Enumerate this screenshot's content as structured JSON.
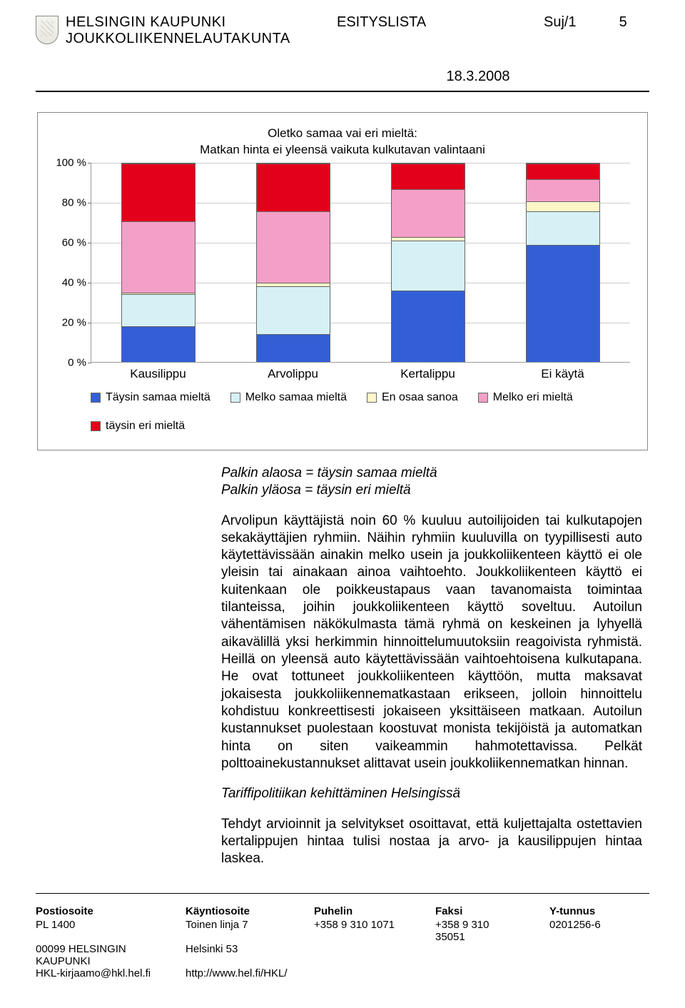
{
  "header": {
    "org_line1": "HELSINGIN KAUPUNKI",
    "org_line2": "JOUKKOLIIKENNELAUTAKUNTA",
    "doc_type": "ESITYSLISTA",
    "doc_ref": "Suj/1",
    "page_no": "5",
    "date": "18.3.2008"
  },
  "chart": {
    "type": "stacked-bar",
    "title_line1": "Oletko samaa vai eri mieltä:",
    "title_line2": "Matkan hinta ei yleensä vaikuta kulkutavan valintaani",
    "ylim": [
      0,
      100
    ],
    "ytick_step": 20,
    "yticks": [
      "0 %",
      "20 %",
      "40 %",
      "60 %",
      "80 %",
      "100 %"
    ],
    "categories": [
      "Kausilippu",
      "Arvolippu",
      "Kertalippu",
      "Ei käytä"
    ],
    "series_order": [
      "taysin_samaa",
      "melko_samaa",
      "en_osaa",
      "melko_eri",
      "taysin_eri"
    ],
    "series": {
      "taysin_samaa": {
        "label": "Täysin samaa mieltä",
        "color": "#335fd6"
      },
      "melko_samaa": {
        "label": "Melko samaa mieltä",
        "color": "#d6f1f6"
      },
      "en_osaa": {
        "label": "En osaa sanoa",
        "color": "#fff6c8"
      },
      "melko_eri": {
        "label": "Melko eri mieltä",
        "color": "#f49fc8"
      },
      "taysin_eri": {
        "label": "täysin eri mieltä",
        "color": "#e3001a"
      }
    },
    "data": {
      "Kausilippu": {
        "taysin_samaa": 18,
        "melko_samaa": 16,
        "en_osaa": 1,
        "melko_eri": 36,
        "taysin_eri": 29
      },
      "Arvolippu": {
        "taysin_samaa": 14,
        "melko_samaa": 24,
        "en_osaa": 2,
        "melko_eri": 36,
        "taysin_eri": 24
      },
      "Kertalippu": {
        "taysin_samaa": 36,
        "melko_samaa": 25,
        "en_osaa": 2,
        "melko_eri": 24,
        "taysin_eri": 13
      },
      "Ei käytä": {
        "taysin_samaa": 59,
        "melko_samaa": 17,
        "en_osaa": 5,
        "melko_eri": 11,
        "taysin_eri": 8
      }
    },
    "grid_color": "#cccccc",
    "axis_color": "#999999",
    "background_color": "#ffffff",
    "bar_border": "#666666",
    "bar_width_ratio": 0.55,
    "title_fontsize": 17,
    "axis_label_fontsize": 15,
    "category_label_fontsize": 17,
    "legend_fontsize": 16
  },
  "body": {
    "caption_line1": "Palkin alaosa = täysin samaa mieltä",
    "caption_line2": "Palkin yläosa = täysin eri mieltä",
    "para1": "Arvolipun käyttäjistä noin 60 % kuuluu autoilijoiden tai kulkutapojen sekakäyttäjien ryhmiin. Näihin ryhmiin kuuluvilla on tyypillisesti auto käytettävissään ainakin melko usein ja joukkoliikenteen käyttö ei ole yleisin tai ainakaan ainoa vaihtoehto. Joukkoliikenteen käyttö ei kuitenkaan ole poikkeustapaus vaan tavanomaista toimintaa tilanteissa, joihin joukkoliikenteen käyttö soveltuu. Autoilun vähentämisen näkökulmasta tämä ryhmä on keskeinen ja lyhyellä aikavälillä yksi herkimmin hinnoittelumuutoksiin reagoivista ryhmistä. Heillä on yleensä auto käytettävissään vaihtoehtoisena kulkutapana. He ovat tottuneet joukkoliikenteen käyttöön, mutta maksavat jokaisesta joukkoliikennematkastaan erikseen, jolloin hinnoittelu kohdistuu konkreettisesti jokaiseen yksittäiseen matkaan. Autoilun kustannukset puolestaan koostuvat monista tekijöistä ja automatkan hinta on siten vaikeammin hahmotettavissa. Pelkät polttoainekustannukset alittavat usein joukkoliikennematkan hinnan.",
    "subhead": "Tariffipolitiikan kehittäminen Helsingissä",
    "para2": "Tehdyt arvioinnit ja selvitykset osoittavat, että kuljettajalta ostettavien kertalippujen hintaa tulisi nostaa ja arvo- ja kausilippujen hintaa laskea."
  },
  "footer": {
    "col_labels": [
      "Postiosoite",
      "Käyntiosoite",
      "Puhelin",
      "Faksi",
      "Y-tunnus"
    ],
    "row2": [
      "PL 1400",
      "Toinen linja 7",
      "+358 9 310 1071",
      "+358 9 310",
      "0201256-6"
    ],
    "row3": [
      "",
      "",
      "",
      "35051",
      ""
    ],
    "row4": [
      "00099 HELSINGIN KAUPUNKI",
      "Helsinki 53",
      "",
      "",
      ""
    ],
    "row5": [
      "HKL-kirjaamo@hkl.hel.fi",
      "http://www.hel.fi/HKL/",
      "",
      "",
      ""
    ]
  }
}
